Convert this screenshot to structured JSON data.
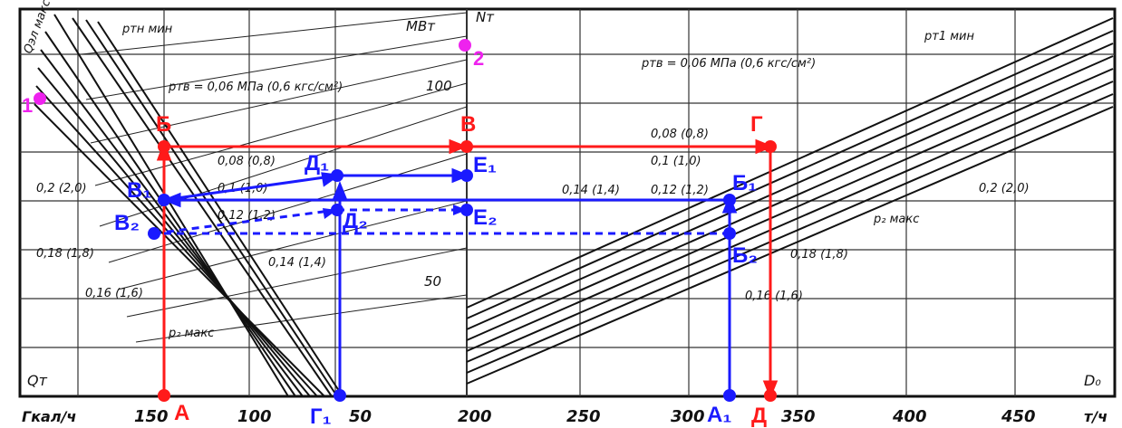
{
  "axes": {
    "x_unit_left": "Гкал/ч",
    "x_unit_right": "т/ч",
    "x_qt_label": "Qт",
    "x_d0_label": "D₀",
    "x_ticks_left": [
      "150",
      "100",
      "50"
    ],
    "x_ticks_right": [
      "200",
      "250",
      "300",
      "350",
      "400",
      "450"
    ],
    "top_unit": "МВт",
    "top_symbol": "Nт",
    "top_ticks": [
      "100",
      "50"
    ],
    "y_label": "Qэл макс"
  },
  "curve_labels": {
    "ptn_min": "pтн мин",
    "ptv_left": "pтв = 0,06 МПа (0,6 кгс/см²)",
    "ptv_right": "pтв = 0,06 МПа (0,6 кгс/см²)",
    "left_1": "0,08 (0,8)",
    "left_2": "0,2 (2,0)",
    "left_3": "0,1 (1,0)",
    "left_4": "0,12 (1,2)",
    "left_5": "0,18 (1,8)",
    "left_6": "0,14 (1,4)",
    "left_7": "0,16 (1,6)",
    "left_8": "p₂ макс",
    "right_1": "0,08 (0,8)",
    "right_2": "0,1 (1,0)",
    "right_3": "0,12 (1,2)",
    "right_4": "0,14 (1,4)",
    "right_5": "0,2 (2,0)",
    "right_6": "p₂ макс",
    "right_7": "0,18 (1,8)",
    "right_8": "0,16 (1,6)",
    "right_min": "pт1 мин"
  },
  "points": {
    "A": "А",
    "B": "Б",
    "V": "В",
    "G": "Г",
    "D": "Д",
    "A1": "А₁",
    "B1": "Б₁",
    "B2": "Б₂",
    "V1": "В₁",
    "V2": "В₂",
    "G1": "Г₁",
    "D1": "Д₁",
    "D2": "Д₂",
    "E1": "Е₁",
    "E2": "Е₂",
    "P1": "1",
    "P2": "2"
  },
  "colors": {
    "red": "#ff1a1a",
    "blue": "#1a1aff",
    "magenta": "#ee22ee",
    "ink": "#111111"
  }
}
